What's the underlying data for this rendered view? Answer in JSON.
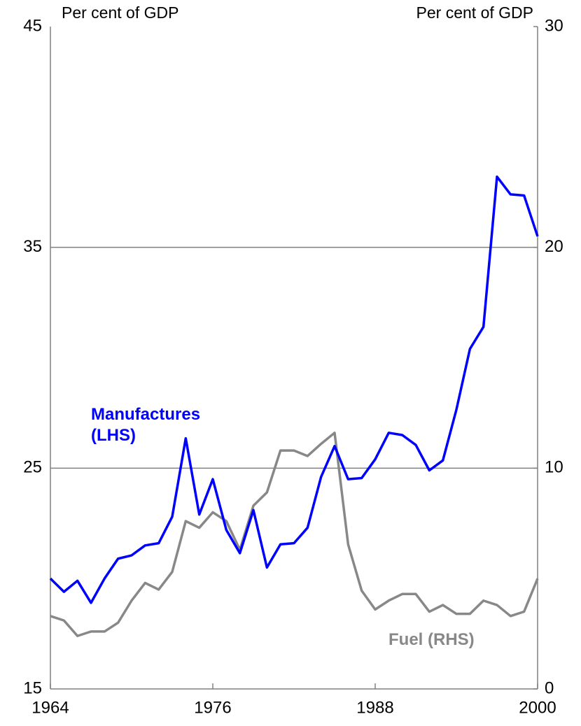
{
  "chart_data": {
    "type": "line",
    "y_label": "Per cent of GDP",
    "y2_label": "Per cent of GDP",
    "x": [
      1964,
      1965,
      1966,
      1967,
      1968,
      1969,
      1970,
      1971,
      1972,
      1973,
      1974,
      1975,
      1976,
      1977,
      1978,
      1979,
      1980,
      1981,
      1982,
      1983,
      1984,
      1985,
      1986,
      1987,
      1988,
      1989,
      1990,
      1991,
      1992,
      1993,
      1994,
      1995,
      1996,
      1997,
      1998,
      1999,
      2000
    ],
    "series": [
      {
        "name": "Manufactures (LHS)",
        "color": "#0000ff",
        "axis": "y",
        "values": [
          20.0,
          19.4,
          19.9,
          18.9,
          20.0,
          20.9,
          21.05,
          21.5,
          21.6,
          22.8,
          26.35,
          22.9,
          24.5,
          22.2,
          21.15,
          23.1,
          20.5,
          21.55,
          21.6,
          22.3,
          24.6,
          26.0,
          24.5,
          24.55,
          25.4,
          26.6,
          26.5,
          26.05,
          24.9,
          25.35,
          27.65,
          30.4,
          31.4,
          38.2,
          37.4,
          37.35,
          35.5
        ]
      },
      {
        "name": "Fuel (RHS)",
        "color": "#888888",
        "axis": "y2",
        "values": [
          3.3,
          3.1,
          2.4,
          2.6,
          2.6,
          3.0,
          4.0,
          4.8,
          4.5,
          5.3,
          7.6,
          7.3,
          8.0,
          7.6,
          6.3,
          8.3,
          8.9,
          10.8,
          10.8,
          10.55,
          11.1,
          11.6,
          6.55,
          4.45,
          3.6,
          4.0,
          4.3,
          4.3,
          3.5,
          3.8,
          3.4,
          3.4,
          4.0,
          3.8,
          3.3,
          3.5,
          5.0
        ]
      }
    ],
    "xlim": [
      1964,
      2000
    ],
    "xticks": [
      1964,
      1976,
      1988,
      2000
    ],
    "ylim": [
      15,
      45
    ],
    "yticks": [
      15,
      25,
      35,
      45
    ],
    "y2lim": [
      0,
      30
    ],
    "y2ticks": [
      0,
      10,
      20,
      30
    ],
    "grid": true
  }
}
